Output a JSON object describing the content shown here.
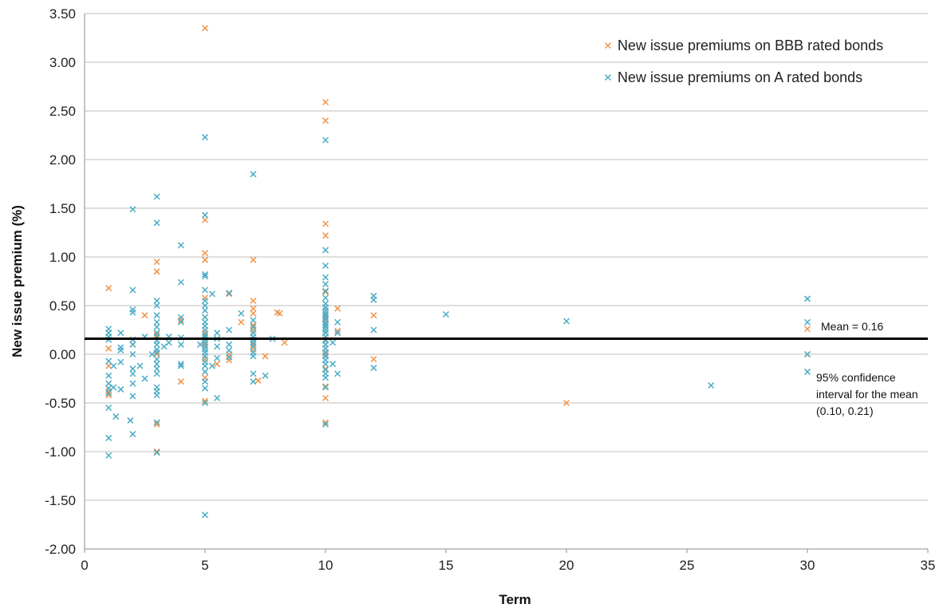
{
  "chart_data": {
    "type": "scatter",
    "xlabel": "Term",
    "ylabel": "New issue premium (%)",
    "xlim": [
      0,
      35
    ],
    "ylim": [
      -2.0,
      3.5
    ],
    "x_ticks": [
      0,
      5,
      10,
      15,
      20,
      25,
      30,
      35
    ],
    "y_ticks": [
      -2.0,
      -1.5,
      -1.0,
      -0.5,
      0.0,
      0.5,
      1.0,
      1.5,
      2.0,
      2.5,
      3.0,
      3.5
    ],
    "x_tick_labels": [
      "0",
      "5",
      "10",
      "15",
      "20",
      "25",
      "30",
      "35"
    ],
    "y_tick_labels": [
      "-2.00",
      "-1.50",
      "-1.00",
      "-0.50",
      "0.00",
      "0.50",
      "1.00",
      "1.50",
      "2.00",
      "2.50",
      "3.00",
      "3.50"
    ],
    "grid": "horizontal",
    "legend_position": "top-right",
    "marker": "x",
    "mean_line": {
      "value": 0.16,
      "label": "Mean = 0.16",
      "color": "#000000"
    },
    "confidence_annotation": [
      "95% confidence",
      "interval for the mean",
      "(0.10, 0.21)"
    ],
    "series": [
      {
        "name": "New issue premiums on BBB rated bonds",
        "color": "#F0954B",
        "points": [
          [
            1,
            0.68
          ],
          [
            1,
            0.06
          ],
          [
            1,
            -0.12
          ],
          [
            1,
            -0.38
          ],
          [
            1,
            -0.42
          ],
          [
            2,
            0.1
          ],
          [
            2.5,
            0.4
          ],
          [
            3,
            0.95
          ],
          [
            3,
            0.85
          ],
          [
            3,
            0.2
          ],
          [
            3,
            0.0
          ],
          [
            3,
            -0.72
          ],
          [
            3,
            -1.0
          ],
          [
            4,
            0.35
          ],
          [
            4,
            -0.28
          ],
          [
            5,
            3.35
          ],
          [
            5,
            1.38
          ],
          [
            5,
            1.04
          ],
          [
            5,
            0.97
          ],
          [
            5,
            0.58
          ],
          [
            5,
            0.38
          ],
          [
            5,
            0.22
          ],
          [
            5,
            0.1
          ],
          [
            5,
            -0.05
          ],
          [
            5,
            -0.24
          ],
          [
            5,
            -0.48
          ],
          [
            5.5,
            -0.1
          ],
          [
            6,
            0.62
          ],
          [
            6,
            0.0
          ],
          [
            6,
            -0.06
          ],
          [
            6.5,
            0.33
          ],
          [
            7,
            0.97
          ],
          [
            7,
            0.55
          ],
          [
            7,
            0.47
          ],
          [
            7,
            0.42
          ],
          [
            7,
            0.3
          ],
          [
            7,
            0.25
          ],
          [
            7,
            0.1
          ],
          [
            7,
            0.05
          ],
          [
            7.2,
            -0.27
          ],
          [
            7.5,
            -0.02
          ],
          [
            8,
            0.43
          ],
          [
            8.1,
            0.42
          ],
          [
            8.3,
            0.12
          ],
          [
            10,
            2.59
          ],
          [
            10,
            2.4
          ],
          [
            10,
            1.34
          ],
          [
            10,
            1.22
          ],
          [
            10,
            0.64
          ],
          [
            10,
            0.48
          ],
          [
            10,
            0.36
          ],
          [
            10,
            0.22
          ],
          [
            10,
            0.15
          ],
          [
            10,
            0.06
          ],
          [
            10,
            0.0
          ],
          [
            10,
            -0.15
          ],
          [
            10,
            -0.33
          ],
          [
            10,
            -0.45
          ],
          [
            10,
            -0.7
          ],
          [
            10.5,
            0.47
          ],
          [
            10.5,
            0.24
          ],
          [
            12,
            0.4
          ],
          [
            12,
            -0.05
          ],
          [
            20,
            -0.5
          ],
          [
            30,
            0.26
          ],
          [
            30,
            0.0
          ]
        ]
      },
      {
        "name": "New issue premiums on A rated bonds",
        "color": "#4BACC6",
        "points": [
          [
            1,
            0.26
          ],
          [
            1,
            0.22
          ],
          [
            1,
            0.18
          ],
          [
            1,
            0.15
          ],
          [
            1,
            -0.07
          ],
          [
            1,
            -0.22
          ],
          [
            1,
            -0.3
          ],
          [
            1,
            -0.35
          ],
          [
            1,
            -0.4
          ],
          [
            1,
            -0.55
          ],
          [
            1,
            -0.86
          ],
          [
            1,
            -1.04
          ],
          [
            1.2,
            -0.12
          ],
          [
            1.2,
            -0.34
          ],
          [
            1.3,
            -0.64
          ],
          [
            1.5,
            0.22
          ],
          [
            1.5,
            0.07
          ],
          [
            1.5,
            0.04
          ],
          [
            1.5,
            -0.08
          ],
          [
            1.5,
            -0.36
          ],
          [
            1.9,
            -0.68
          ],
          [
            2,
            1.49
          ],
          [
            2,
            0.66
          ],
          [
            2,
            0.46
          ],
          [
            2,
            0.43
          ],
          [
            2,
            0.15
          ],
          [
            2,
            0.1
          ],
          [
            2,
            0.0
          ],
          [
            2,
            -0.15
          ],
          [
            2,
            -0.2
          ],
          [
            2,
            -0.3
          ],
          [
            2,
            -0.43
          ],
          [
            2,
            -0.82
          ],
          [
            2.3,
            -0.12
          ],
          [
            2.5,
            0.18
          ],
          [
            2.5,
            -0.25
          ],
          [
            2.8,
            0.0
          ],
          [
            3,
            1.62
          ],
          [
            3,
            1.35
          ],
          [
            3,
            0.55
          ],
          [
            3,
            0.5
          ],
          [
            3,
            0.4
          ],
          [
            3,
            0.33
          ],
          [
            3,
            0.28
          ],
          [
            3,
            0.22
          ],
          [
            3,
            0.18
          ],
          [
            3,
            0.14
          ],
          [
            3,
            0.1
          ],
          [
            3,
            0.05
          ],
          [
            3,
            0.02
          ],
          [
            3,
            -0.05
          ],
          [
            3,
            -0.1
          ],
          [
            3,
            -0.15
          ],
          [
            3,
            -0.2
          ],
          [
            3,
            -0.34
          ],
          [
            3,
            -0.38
          ],
          [
            3,
            -0.42
          ],
          [
            3,
            -0.7
          ],
          [
            3,
            -1.01
          ],
          [
            3.3,
            0.08
          ],
          [
            3.5,
            0.18
          ],
          [
            3.5,
            0.12
          ],
          [
            4,
            1.12
          ],
          [
            4,
            0.74
          ],
          [
            4,
            0.38
          ],
          [
            4,
            0.33
          ],
          [
            4,
            0.17
          ],
          [
            4,
            0.1
          ],
          [
            4,
            -0.1
          ],
          [
            4,
            -0.12
          ],
          [
            4.8,
            0.1
          ],
          [
            5,
            2.23
          ],
          [
            5,
            1.43
          ],
          [
            5,
            0.82
          ],
          [
            5,
            0.8
          ],
          [
            5,
            0.66
          ],
          [
            5,
            0.55
          ],
          [
            5,
            0.5
          ],
          [
            5,
            0.45
          ],
          [
            5,
            0.38
          ],
          [
            5,
            0.33
          ],
          [
            5,
            0.29
          ],
          [
            5,
            0.25
          ],
          [
            5,
            0.2
          ],
          [
            5,
            0.18
          ],
          [
            5,
            0.15
          ],
          [
            5,
            0.12
          ],
          [
            5,
            0.08
          ],
          [
            5,
            0.05
          ],
          [
            5,
            0.02
          ],
          [
            5,
            -0.02
          ],
          [
            5,
            -0.08
          ],
          [
            5,
            -0.12
          ],
          [
            5,
            -0.18
          ],
          [
            5,
            -0.28
          ],
          [
            5,
            -0.35
          ],
          [
            5,
            -0.5
          ],
          [
            5,
            -1.65
          ],
          [
            5.3,
            0.62
          ],
          [
            5.3,
            -0.12
          ],
          [
            5.5,
            0.22
          ],
          [
            5.5,
            0.16
          ],
          [
            5.5,
            0.08
          ],
          [
            5.5,
            -0.04
          ],
          [
            5.5,
            -0.45
          ],
          [
            6,
            0.63
          ],
          [
            6,
            0.25
          ],
          [
            6,
            0.1
          ],
          [
            6,
            0.04
          ],
          [
            6,
            -0.03
          ],
          [
            6.5,
            0.42
          ],
          [
            7,
            1.85
          ],
          [
            7,
            0.35
          ],
          [
            7,
            0.28
          ],
          [
            7,
            0.22
          ],
          [
            7,
            0.18
          ],
          [
            7,
            0.15
          ],
          [
            7,
            0.12
          ],
          [
            7,
            0.08
          ],
          [
            7,
            0.02
          ],
          [
            7,
            -0.02
          ],
          [
            7,
            -0.2
          ],
          [
            7,
            -0.28
          ],
          [
            7.5,
            -0.22
          ],
          [
            7.8,
            0.16
          ],
          [
            10,
            2.2
          ],
          [
            10,
            1.07
          ],
          [
            10,
            0.91
          ],
          [
            10,
            0.79
          ],
          [
            10,
            0.72
          ],
          [
            10,
            0.65
          ],
          [
            10,
            0.58
          ],
          [
            10,
            0.52
          ],
          [
            10,
            0.48
          ],
          [
            10,
            0.45
          ],
          [
            10,
            0.42
          ],
          [
            10,
            0.4
          ],
          [
            10,
            0.38
          ],
          [
            10,
            0.35
          ],
          [
            10,
            0.32
          ],
          [
            10,
            0.3
          ],
          [
            10,
            0.28
          ],
          [
            10,
            0.25
          ],
          [
            10,
            0.22
          ],
          [
            10,
            0.18
          ],
          [
            10,
            0.14
          ],
          [
            10,
            0.1
          ],
          [
            10,
            0.06
          ],
          [
            10,
            0.02
          ],
          [
            10,
            -0.02
          ],
          [
            10,
            -0.06
          ],
          [
            10,
            -0.1
          ],
          [
            10,
            -0.16
          ],
          [
            10,
            -0.2
          ],
          [
            10,
            -0.24
          ],
          [
            10,
            -0.34
          ],
          [
            10,
            -0.72
          ],
          [
            10.3,
            0.12
          ],
          [
            10.3,
            -0.1
          ],
          [
            10.5,
            0.33
          ],
          [
            10.5,
            0.22
          ],
          [
            10.5,
            -0.2
          ],
          [
            12,
            0.6
          ],
          [
            12,
            0.56
          ],
          [
            12,
            0.25
          ],
          [
            12,
            -0.14
          ],
          [
            15,
            0.41
          ],
          [
            20,
            0.34
          ],
          [
            26,
            -0.32
          ],
          [
            30,
            0.57
          ],
          [
            30,
            0.33
          ],
          [
            30,
            0.0
          ],
          [
            30,
            -0.18
          ]
        ]
      }
    ]
  }
}
